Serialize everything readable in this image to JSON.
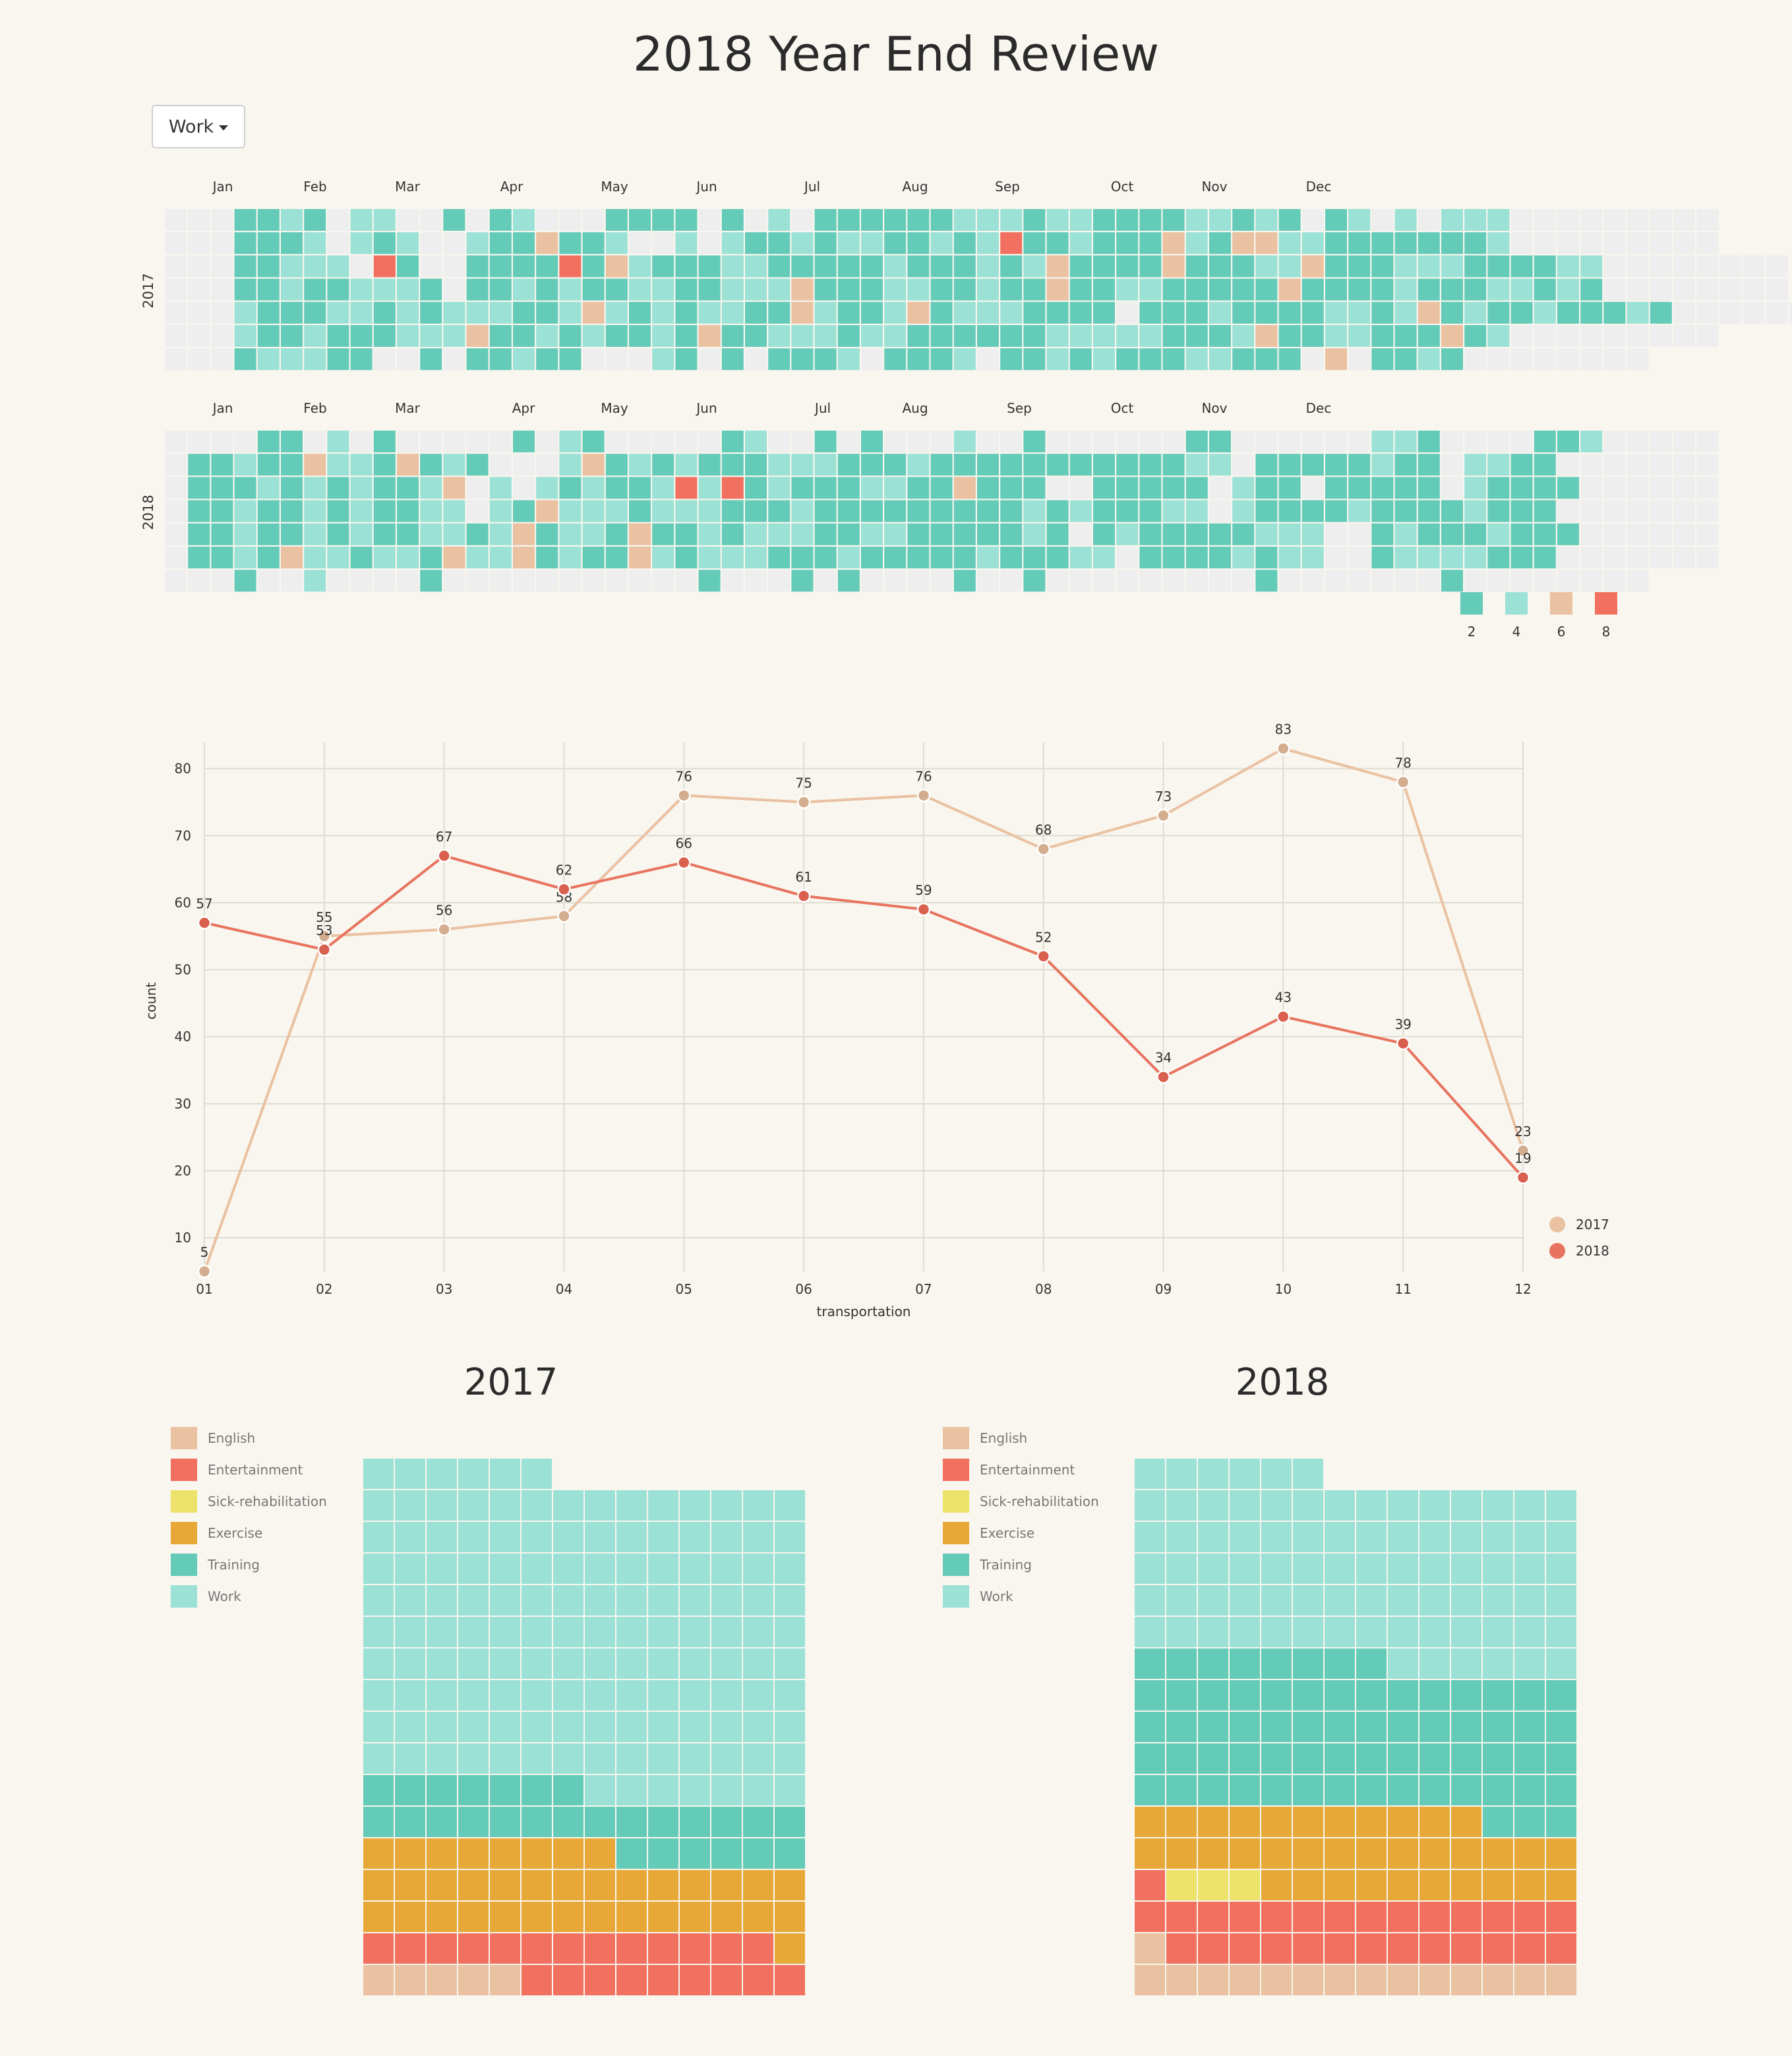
{
  "title": "2018 Year End Review",
  "dropdown": {
    "selected": "Work"
  },
  "colors": {
    "bg": "#f8f6ee",
    "empty": "#eeeeee",
    "c2": "#63cbb8",
    "c4": "#9be1d5",
    "c6": "#eac1a1",
    "c8": "#f1705f",
    "l2017": "#eac1a1",
    "l2018": "#e8735f"
  },
  "chart_data": [
    {
      "type": "heatmap",
      "name": "calendar",
      "rows": [
        "2017",
        "2018"
      ],
      "months": [
        "Jan",
        "Feb",
        "Mar",
        "Apr",
        "May",
        "Jun",
        "Jul",
        "Aug",
        "Sep",
        "Oct",
        "Nov",
        "Dec"
      ],
      "legend": [
        2,
        4,
        6,
        8
      ],
      "grids": {
        "2017": [
          "0002242044002024000222202040222222444244222244242024040444000000000",
          "0002224142400422622400434224244224248224222642664422222224000000000",
          "0002244408200222282642224422222422242462222622244622244422224400000000",
          "0002242244420224242244224446222442242262244222226222242224424200000000",
          "0004222442424442246424244226422462444222232224222244246242242224200000000",
          "0004224222444622424224262244424422222244444222462244222624000000000",
          "0002444220020224220004202022240222402242422244222060224200000000"
        ],
        "2018": [
          "0000220402000002042000002400202000400200000022000000442000022400000",
          "0224226442624200046242422244422242222222222244022222422044220000000",
          "0222424242246040424224848242224422622200222220422022222042222000000",
          "0224224242244042644424442224222222222424222440422224222242220000000",
          "0224224242244246244262242444224422222420242222244400242224222000000",
          "0224264424426446242264244422242222242224402222424400244442220000000",
          "0002004000020000000000020002020000200200000000020000000200000000"
        ]
      }
    },
    {
      "type": "line",
      "name": "monthly-count",
      "x": [
        "01",
        "02",
        "03",
        "04",
        "05",
        "06",
        "07",
        "08",
        "09",
        "10",
        "11",
        "12"
      ],
      "xlabel": "transportation",
      "ylabel": "count",
      "y_ticks": [
        10,
        20,
        30,
        40,
        50,
        60,
        70,
        80
      ],
      "ylim": [
        5,
        84
      ],
      "grid": true,
      "legend_position": "bottom-right",
      "series": [
        {
          "name": "2017",
          "values": [
            5,
            55,
            56,
            58,
            76,
            75,
            76,
            68,
            73,
            83,
            78,
            23
          ]
        },
        {
          "name": "2018",
          "values": [
            57,
            53,
            67,
            62,
            66,
            61,
            59,
            52,
            34,
            43,
            39,
            19
          ]
        }
      ]
    },
    {
      "type": "waffle",
      "title": "2017",
      "categories": [
        "English",
        "Entertainment",
        "Sick-rehabilitation",
        "Exercise",
        "Training",
        "Work"
      ],
      "colors": [
        "#eac1a1",
        "#f1705f",
        "#ede36a",
        "#e8a837",
        "#63cbb8",
        "#9be1d5"
      ],
      "counts": [
        5,
        22,
        0,
        37,
        27,
        139
      ]
    },
    {
      "type": "waffle",
      "title": "2018",
      "categories": [
        "English",
        "Entertainment",
        "Sick-rehabilitation",
        "Exercise",
        "Training",
        "Work"
      ],
      "colors": [
        "#eac1a1",
        "#f1705f",
        "#ede36a",
        "#e8a837",
        "#63cbb8",
        "#9be1d5"
      ],
      "counts": [
        15,
        28,
        3,
        35,
        67,
        82
      ]
    }
  ]
}
